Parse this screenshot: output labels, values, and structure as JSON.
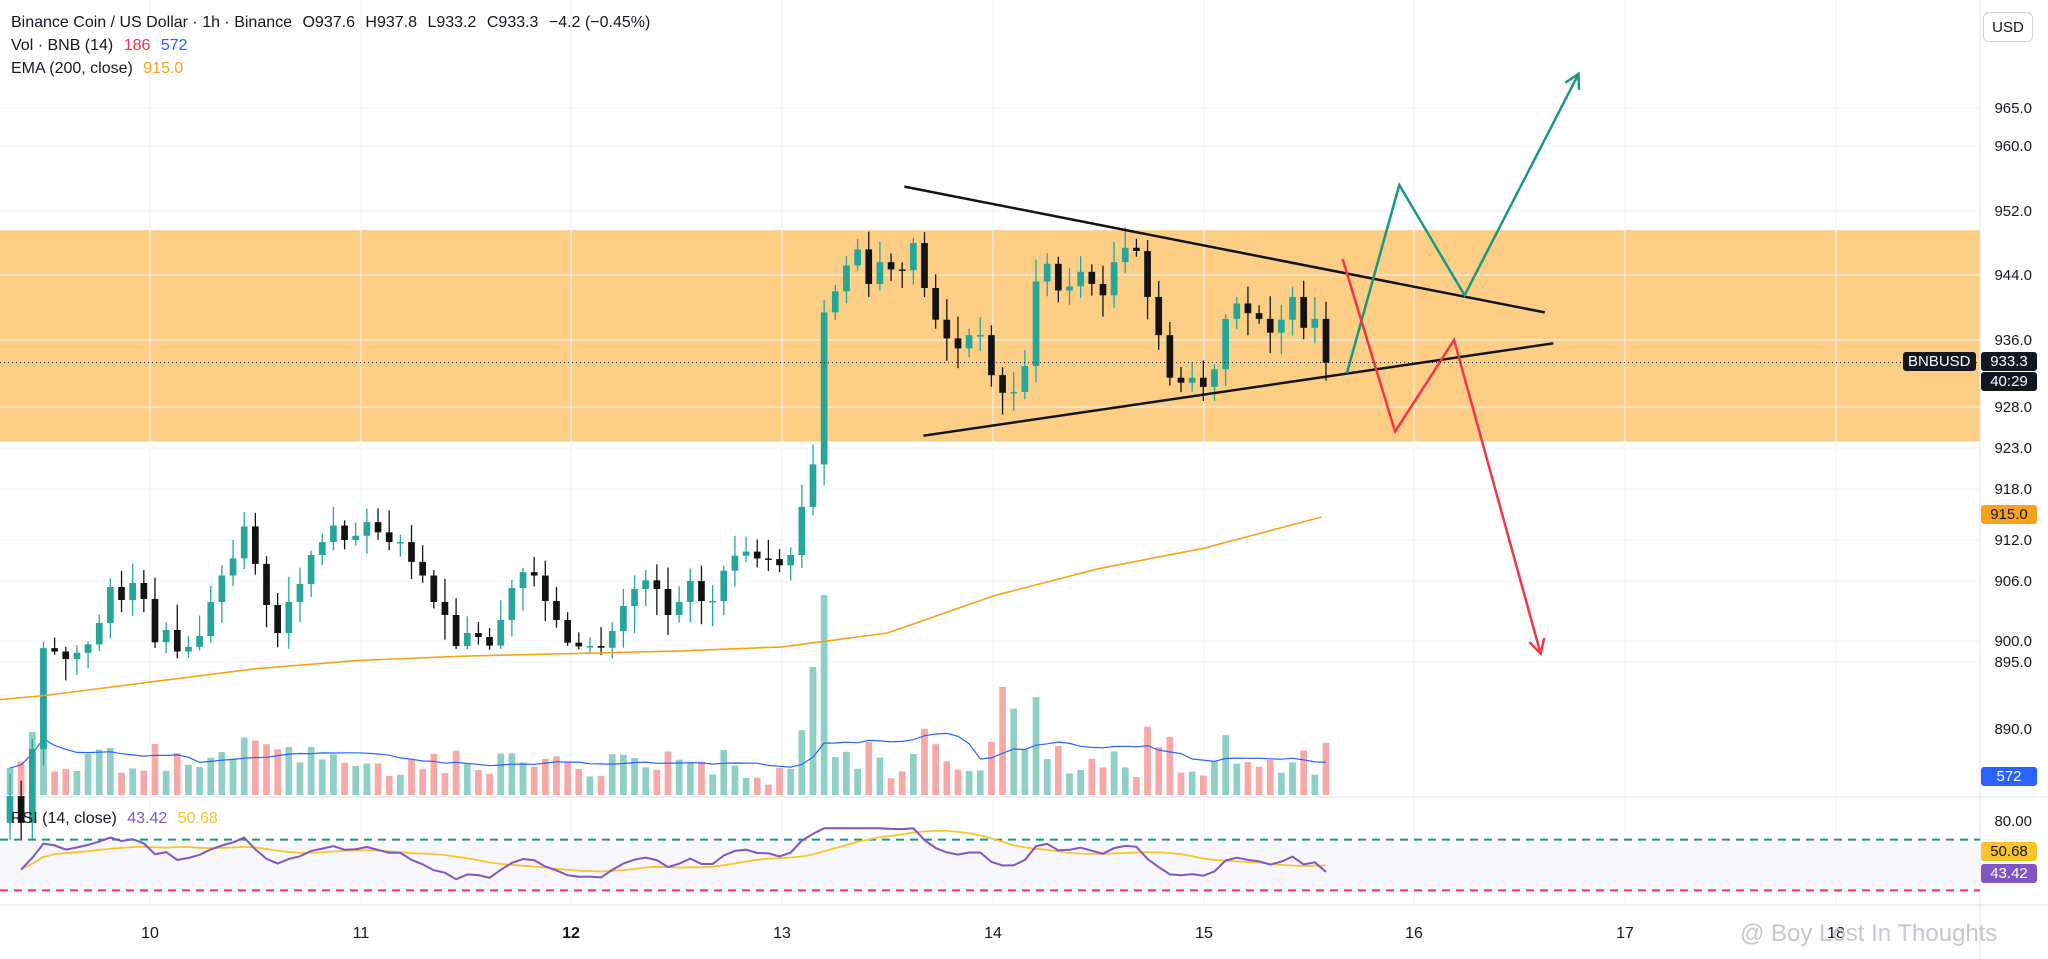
{
  "header": {
    "symbol": "Binance Coin / US Dollar · 1h · Binance",
    "open": "O937.6",
    "high": "H937.8",
    "low": "L933.2",
    "close": "C933.3",
    "change": "−4.2 (−0.45%)",
    "vol_label": "Vol · BNB (14)",
    "vol_a": "186",
    "vol_b": "572",
    "ema_label": "EMA (200, close)",
    "ema_value": "915.0",
    "currency": "USD"
  },
  "rsi_header": {
    "label": "RSI (14, close)",
    "rsi": "43.42",
    "ma": "50.68"
  },
  "price_tags": {
    "symbol": "BNBUSD",
    "last": "933.3",
    "countdown": "40:29",
    "ema": "915.0",
    "vol": "572",
    "rsi_ma": "50.68",
    "rsi": "43.42"
  },
  "watermark": "@ Boy Lost In Thoughts",
  "colors": {
    "up": "#26a69a",
    "down": "#131313",
    "zone": "#fdcf86",
    "ema": "#f7a21b",
    "rsi": "#7e57c2",
    "rsi_ma": "#f7c52b",
    "bull": "#1a9780",
    "bear": "#f23645",
    "vol_ma": "#2962ff"
  },
  "chart_data": {
    "type": "candlestick",
    "x_ticks": [
      "10",
      "11",
      "12",
      "13",
      "14",
      "15",
      "16",
      "17",
      "18"
    ],
    "y_ticks": [
      890.0,
      895.0,
      900.0,
      906.0,
      912.0,
      918.0,
      923.0,
      928.0,
      936.0,
      944.0,
      952.0,
      960.0,
      965.0
    ],
    "last_price": 933.3,
    "resistance_zone": [
      923.8,
      949.6
    ],
    "triangle": {
      "upper": [
        [
          13.58,
          955.0
        ],
        [
          16.62,
          939.4
        ]
      ],
      "lower": [
        [
          13.67,
          924.5
        ],
        [
          16.66,
          935.6
        ]
      ]
    },
    "scenario_bull": [
      [
        15.68,
        932.0
      ],
      [
        15.93,
        955.2
      ],
      [
        16.24,
        941.5
      ],
      [
        16.78,
        969.5
      ]
    ],
    "scenario_bear": [
      [
        15.66,
        946.0
      ],
      [
        15.91,
        925.0
      ],
      [
        16.19,
        936.0
      ],
      [
        16.6,
        897.0
      ]
    ],
    "ema_200": [
      [
        9.0,
        891.8
      ],
      [
        9.5,
        892.5
      ],
      [
        10.0,
        893.5
      ],
      [
        10.5,
        894.5
      ],
      [
        11.0,
        895.4
      ],
      [
        11.5,
        896.4
      ],
      [
        12.0,
        897.0
      ],
      [
        12.5,
        897.6
      ],
      [
        13.0,
        898.6
      ],
      [
        13.5,
        900.8
      ],
      [
        14.0,
        904.5
      ],
      [
        14.5,
        907.8
      ],
      [
        15.0,
        910.8
      ],
      [
        15.56,
        914.7
      ]
    ],
    "closes": [
      885.0,
      883.0,
      888.5,
      898.3,
      897.5,
      895.7,
      897.2,
      899.2,
      901.8,
      905.4,
      904.1,
      905.8,
      904.2,
      899.7,
      901.1,
      897.5,
      898.6,
      900.5,
      903.9,
      906.8,
      909.3,
      913.6,
      908.5,
      903.6,
      900.8,
      903.9,
      905.7,
      909.8,
      911.7,
      913.7,
      912.0,
      912.5,
      914.1,
      912.9,
      911.7,
      911.7,
      908.8,
      906.8,
      903.9,
      902.6,
      898.8,
      900.8,
      900.4,
      898.9,
      902.1,
      905.3,
      907.3,
      906.8,
      904.0,
      902.1,
      899.6,
      898.7,
      898.8,
      898.4,
      901.0,
      903.5,
      905.2,
      906.1,
      905.2,
      902.6,
      903.9,
      906.0,
      904.0,
      904.0,
      907.5,
      909.7,
      910.3,
      909.3,
      909.2,
      908.3,
      909.8,
      915.9,
      921.0,
      939.4,
      942.0,
      945.2,
      947.2,
      942.9,
      945.6,
      944.7,
      944.6,
      948.0,
      942.4,
      938.5,
      936.2,
      935.0,
      936.6,
      936.6,
      931.8,
      929.7,
      929.8,
      932.9,
      943.2,
      945.4,
      942.1,
      942.6,
      944.4,
      942.9,
      941.5,
      945.6,
      947.4,
      947.0,
      941.3,
      936.6,
      931.5,
      930.9,
      931.5,
      930.4,
      932.5,
      938.6,
      940.5,
      939.3,
      938.6,
      936.9,
      938.5,
      941.3,
      937.5,
      938.6,
      933.3
    ],
    "rsi_range": [
      20,
      80
    ],
    "rsi_levels": [
      70,
      30
    ]
  }
}
